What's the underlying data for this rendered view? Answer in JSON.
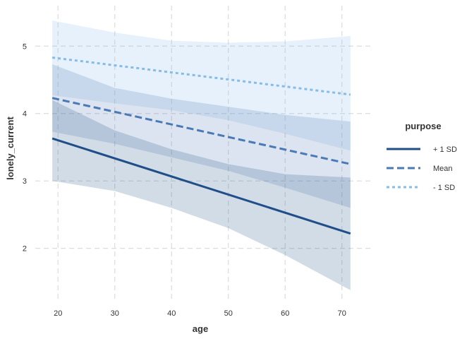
{
  "chart_data": {
    "type": "line",
    "xlabel": "age",
    "ylabel": "lonely_current",
    "xlim": [
      16,
      75
    ],
    "ylim": [
      1.2,
      5.6
    ],
    "x_ticks": [
      20,
      30,
      40,
      50,
      60,
      70
    ],
    "y_ticks": [
      2,
      3,
      4,
      5
    ],
    "x_tick_labels": [
      "20",
      "30",
      "40",
      "50",
      "60",
      "70"
    ],
    "y_tick_labels": [
      "2",
      "3",
      "4",
      "5"
    ],
    "grid": true,
    "legend": {
      "title": "purpose",
      "position": "right"
    },
    "series": [
      {
        "name": "+ 1 SD",
        "line_style": "solid",
        "color": "#1F4E89",
        "band_color": "#1F4E89",
        "x": [
          19,
          71.5
        ],
        "y": [
          3.63,
          2.22
        ],
        "ci_x": [
          19,
          30,
          40,
          50,
          60,
          71.5
        ],
        "ci_lower": [
          3.0,
          2.85,
          2.6,
          2.3,
          1.9,
          1.38
        ],
        "ci_upper": [
          4.2,
          3.75,
          3.47,
          3.25,
          3.1,
          3.05
        ]
      },
      {
        "name": "Mean",
        "line_style": "dashed",
        "color": "#4A7AB5",
        "band_color": "#4A7AB5",
        "x": [
          19,
          71.5
        ],
        "y": [
          4.23,
          3.25
        ],
        "ci_x": [
          19,
          30,
          40,
          50,
          60,
          71.5
        ],
        "ci_lower": [
          3.73,
          3.55,
          3.35,
          3.15,
          2.9,
          2.6
        ],
        "ci_upper": [
          4.73,
          4.38,
          4.22,
          4.1,
          3.98,
          3.88
        ]
      },
      {
        "name": "- 1 SD",
        "line_style": "dotted",
        "color": "#86BCE8",
        "band_color": "#8EC0EC",
        "x": [
          19,
          71.5
        ],
        "y": [
          4.83,
          4.28
        ],
        "ci_x": [
          19,
          30,
          40,
          50,
          60,
          71.5
        ],
        "ci_lower": [
          4.27,
          4.15,
          4.05,
          3.9,
          3.7,
          3.45
        ],
        "ci_upper": [
          5.38,
          5.2,
          5.08,
          5.05,
          5.07,
          5.15
        ]
      }
    ]
  }
}
